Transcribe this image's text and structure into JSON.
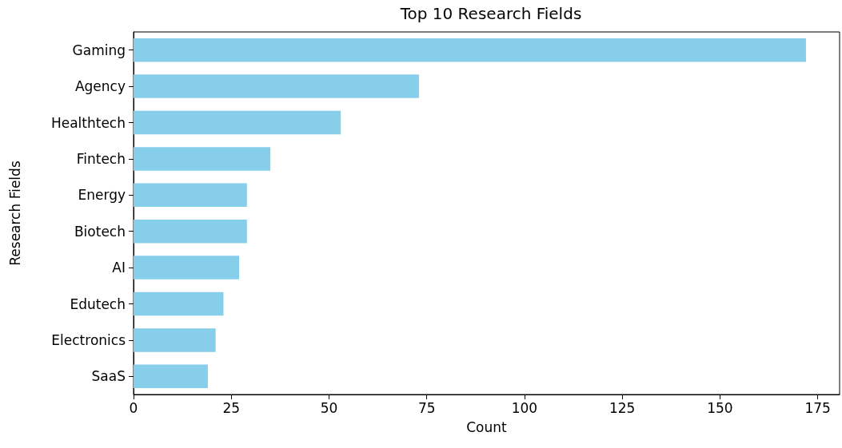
{
  "chart_data": {
    "type": "bar",
    "orientation": "horizontal",
    "title": "Top 10 Research Fields",
    "xlabel": "Count",
    "ylabel": "Research Fields",
    "categories": [
      "Gaming",
      "Agency",
      "Healthtech",
      "Fintech",
      "Energy",
      "Biotech",
      "AI",
      "Edutech",
      "Electronics",
      "SaaS"
    ],
    "values": [
      172,
      73,
      53,
      35,
      29,
      29,
      27,
      23,
      21,
      19
    ],
    "color": "#87ceeb",
    "xlim": [
      0,
      180.6
    ],
    "xticks": [
      0,
      25,
      50,
      75,
      100,
      125,
      150,
      175
    ],
    "grid": false
  }
}
